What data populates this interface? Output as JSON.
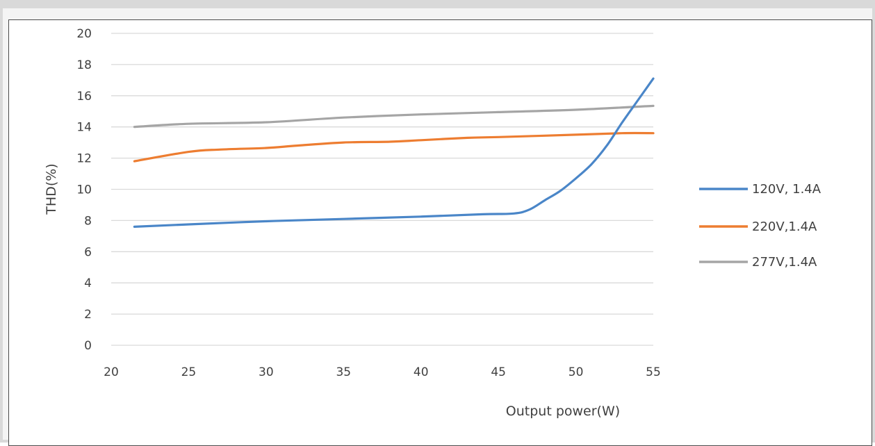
{
  "chart_data": {
    "type": "line",
    "title": "",
    "xlabel": "Output power(W)",
    "ylabel": "THD(%)",
    "xlim": [
      20,
      55
    ],
    "ylim": [
      0,
      20
    ],
    "x_ticks": [
      20,
      25,
      30,
      35,
      40,
      45,
      50,
      55
    ],
    "y_ticks": [
      0,
      2,
      4,
      6,
      8,
      10,
      12,
      14,
      16,
      18,
      20
    ],
    "grid": "horizontal",
    "legend_position": "right",
    "series": [
      {
        "name": "120V, 1.4A",
        "color": "#4a86c8",
        "points": [
          [
            21.5,
            7.6
          ],
          [
            25,
            7.75
          ],
          [
            30,
            7.95
          ],
          [
            35,
            8.1
          ],
          [
            40,
            8.25
          ],
          [
            44,
            8.4
          ],
          [
            46,
            8.45
          ],
          [
            47,
            8.7
          ],
          [
            48,
            9.3
          ],
          [
            49,
            9.9
          ],
          [
            50,
            10.7
          ],
          [
            51,
            11.6
          ],
          [
            52,
            12.8
          ],
          [
            53,
            14.3
          ],
          [
            54,
            15.7
          ],
          [
            55,
            17.1
          ]
        ]
      },
      {
        "name": "220V,1.4A",
        "color": "#ed7d31",
        "points": [
          [
            21.5,
            11.8
          ],
          [
            25,
            12.4
          ],
          [
            27,
            12.55
          ],
          [
            30,
            12.65
          ],
          [
            32,
            12.8
          ],
          [
            35,
            13.0
          ],
          [
            38,
            13.05
          ],
          [
            40,
            13.15
          ],
          [
            43,
            13.3
          ],
          [
            45,
            13.35
          ],
          [
            50,
            13.5
          ],
          [
            53,
            13.6
          ],
          [
            55,
            13.6
          ]
        ]
      },
      {
        "name": "277V,1.4A",
        "color": "#a5a5a5",
        "points": [
          [
            21.5,
            14.0
          ],
          [
            25,
            14.2
          ],
          [
            30,
            14.3
          ],
          [
            35,
            14.6
          ],
          [
            40,
            14.8
          ],
          [
            45,
            14.95
          ],
          [
            50,
            15.1
          ],
          [
            55,
            15.35
          ]
        ]
      }
    ]
  }
}
